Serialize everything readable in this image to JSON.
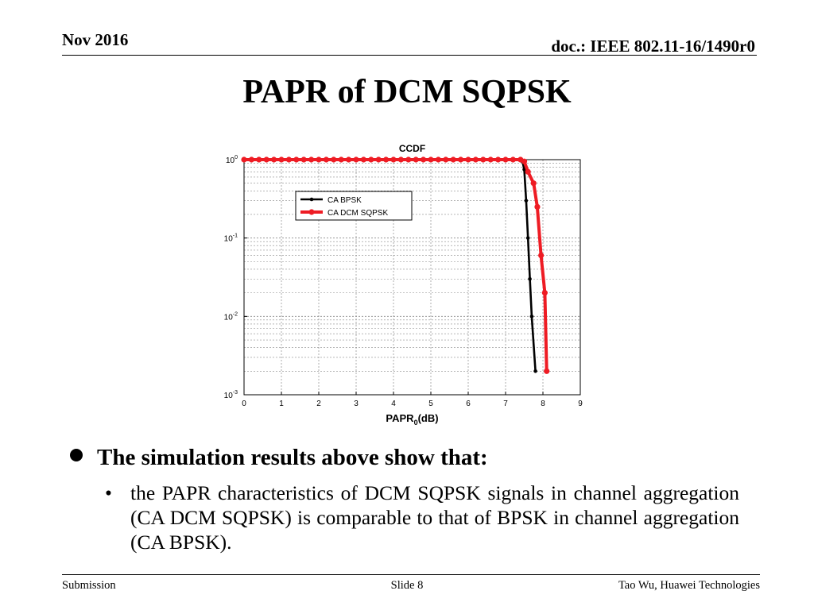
{
  "header": {
    "date": "Nov 2016",
    "doc": "doc.: IEEE 802.11-16/1490r0"
  },
  "slide_title": "PAPR of DCM SQPSK",
  "chart_data": {
    "type": "line",
    "title": "CCDF",
    "xlabel": "PAPR",
    "xlabel_sub": "0",
    "xlabel_suffix": "(dB)",
    "ylabel": "",
    "xlim": [
      0,
      9
    ],
    "ylim": [
      0.001,
      1
    ],
    "yscale": "log",
    "grid": true,
    "legend_position": "upper-left",
    "x_ticks": [
      "0",
      "1",
      "2",
      "3",
      "4",
      "5",
      "6",
      "7",
      "8",
      "9"
    ],
    "y_ticks": [
      {
        "base": "10",
        "exp": "0"
      },
      {
        "base": "10",
        "exp": "-1"
      },
      {
        "base": "10",
        "exp": "-2"
      },
      {
        "base": "10",
        "exp": "-3"
      }
    ],
    "series": [
      {
        "name": "CA BPSK",
        "color": "#000000",
        "marker": "dot",
        "x": [
          0,
          0.2,
          0.4,
          0.6,
          0.8,
          1.0,
          1.2,
          1.4,
          1.6,
          1.8,
          2.0,
          2.2,
          2.4,
          2.6,
          2.8,
          3.0,
          3.2,
          3.4,
          3.6,
          3.8,
          4.0,
          4.2,
          4.4,
          4.6,
          4.8,
          5.0,
          5.2,
          5.4,
          5.6,
          5.8,
          6.0,
          6.2,
          6.4,
          6.6,
          6.8,
          7.0,
          7.2,
          7.4,
          7.45,
          7.5,
          7.55,
          7.6,
          7.65,
          7.7,
          7.8
        ],
        "y": [
          1,
          1,
          1,
          1,
          1,
          1,
          1,
          1,
          1,
          1,
          1,
          1,
          1,
          1,
          1,
          1,
          1,
          1,
          1,
          1,
          1,
          1,
          1,
          1,
          1,
          1,
          1,
          1,
          1,
          1,
          1,
          1,
          1,
          1,
          1,
          1,
          1,
          1,
          0.95,
          0.75,
          0.3,
          0.1,
          0.03,
          0.01,
          0.002
        ]
      },
      {
        "name": "CA DCM SQPSK",
        "color": "#ee1c24",
        "marker": "dot",
        "x": [
          0,
          0.2,
          0.4,
          0.6,
          0.8,
          1.0,
          1.2,
          1.4,
          1.6,
          1.8,
          2.0,
          2.2,
          2.4,
          2.6,
          2.8,
          3.0,
          3.2,
          3.4,
          3.6,
          3.8,
          4.0,
          4.2,
          4.4,
          4.6,
          4.8,
          5.0,
          5.2,
          5.4,
          5.6,
          5.8,
          6.0,
          6.2,
          6.4,
          6.6,
          6.8,
          7.0,
          7.2,
          7.4,
          7.5,
          7.6,
          7.75,
          7.85,
          7.95,
          8.05,
          8.1
        ],
        "y": [
          1,
          1,
          1,
          1,
          1,
          1,
          1,
          1,
          1,
          1,
          1,
          1,
          1,
          1,
          1,
          1,
          1,
          1,
          1,
          1,
          1,
          1,
          1,
          1,
          1,
          1,
          1,
          1,
          1,
          1,
          1,
          1,
          1,
          1,
          1,
          1,
          1,
          1,
          0.95,
          0.7,
          0.5,
          0.25,
          0.06,
          0.02,
          0.002
        ]
      }
    ]
  },
  "bullet_main": "The simulation results above show that:",
  "bullet_sub_mark": "•",
  "bullet_sub": "the PAPR characteristics of DCM SQPSK signals in channel aggregation (CA DCM SQPSK) is comparable to that of BPSK in channel aggregation (CA BPSK).",
  "footer": {
    "left": "Submission",
    "center": "Slide 8",
    "right": "Tao Wu, Huawei Technologies"
  }
}
